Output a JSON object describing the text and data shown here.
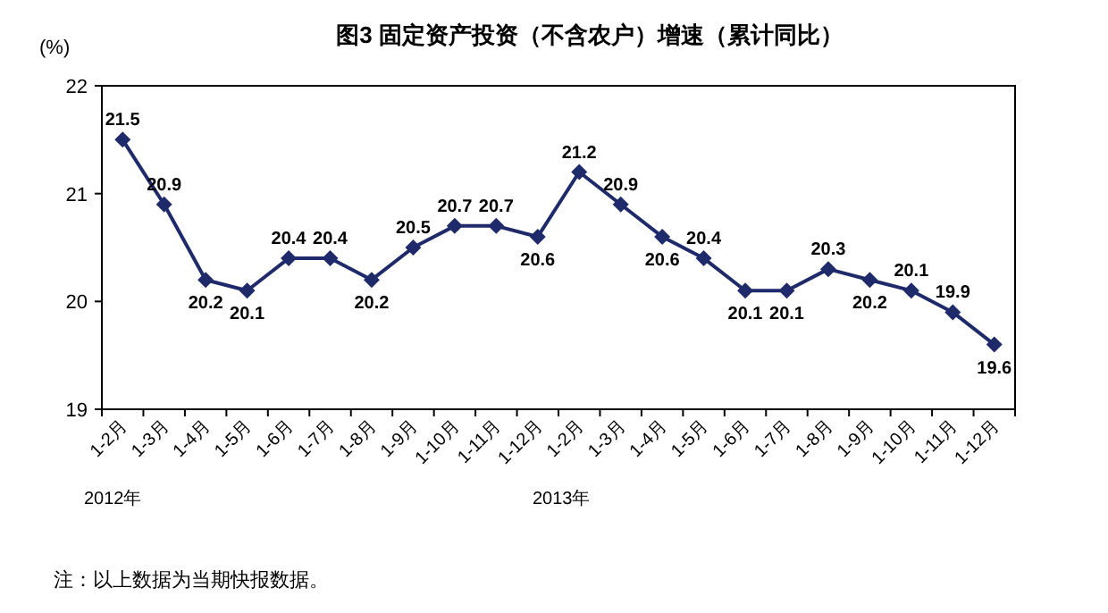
{
  "chart_data": {
    "type": "line",
    "title": "图3 固定资产投资（不含农户）增速（累计同比）",
    "ylabel": "(%)",
    "categories": [
      "1-2月",
      "1-3月",
      "1-4月",
      "1-5月",
      "1-6月",
      "1-7月",
      "1-8月",
      "1-9月",
      "1-10月",
      "1-11月",
      "1-12月",
      "1-2月",
      "1-3月",
      "1-4月",
      "1-5月",
      "1-6月",
      "1-7月",
      "1-8月",
      "1-9月",
      "1-10月",
      "1-11月",
      "1-12月"
    ],
    "values": [
      21.5,
      20.9,
      20.2,
      20.1,
      20.4,
      20.4,
      20.2,
      20.5,
      20.7,
      20.7,
      20.6,
      21.2,
      20.9,
      20.6,
      20.4,
      20.1,
      20.1,
      20.3,
      20.2,
      20.1,
      19.9,
      19.6
    ],
    "color": "#1f2a6b",
    "marker": "diamond",
    "data_labels": true,
    "grid": false,
    "legend": false,
    "ylim": [
      19,
      22
    ],
    "yticks": [
      19,
      20,
      21,
      22
    ],
    "annotations": [
      "2012年",
      "2013年",
      "注：以上数据为当期快报数据。"
    ]
  }
}
